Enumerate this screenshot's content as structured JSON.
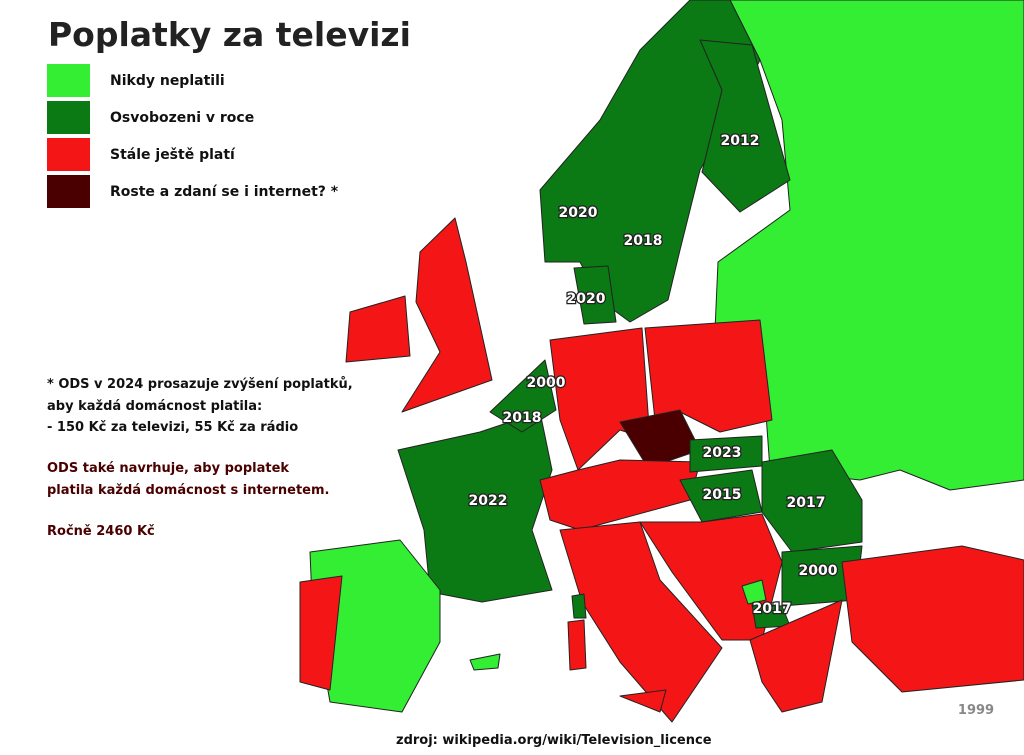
{
  "title": "Poplatky za televizi",
  "legend": [
    {
      "label": "Nikdy neplatili",
      "color": "#33ee33"
    },
    {
      "label": "Osvobozeni v roce",
      "color": "#0b7a14"
    },
    {
      "label": "Stále ještě platí",
      "color": "#f41616"
    },
    {
      "label": "Roste a zdaní se i internet? *",
      "color": "#4a0000"
    }
  ],
  "notes": [
    "* ODS v 2024 prosazuje zvýšení poplatků,",
    "aby každá domácnost platila:",
    "- 150 Kč za televizi,  55 Kč  za rádio",
    "ODS také navrhuje, aby poplatek",
    "platila každá domácnost s internetem.",
    "Ročně 2460 Kč"
  ],
  "map_labels": [
    "2012",
    "2020",
    "2018",
    "2020",
    "2000",
    "2018",
    "2023",
    "2022",
    "2015",
    "2017",
    "2000",
    "2017"
  ],
  "corner_mark": "1999",
  "source": "zdroj: wikipedia.org/wiki/Television_licence"
}
